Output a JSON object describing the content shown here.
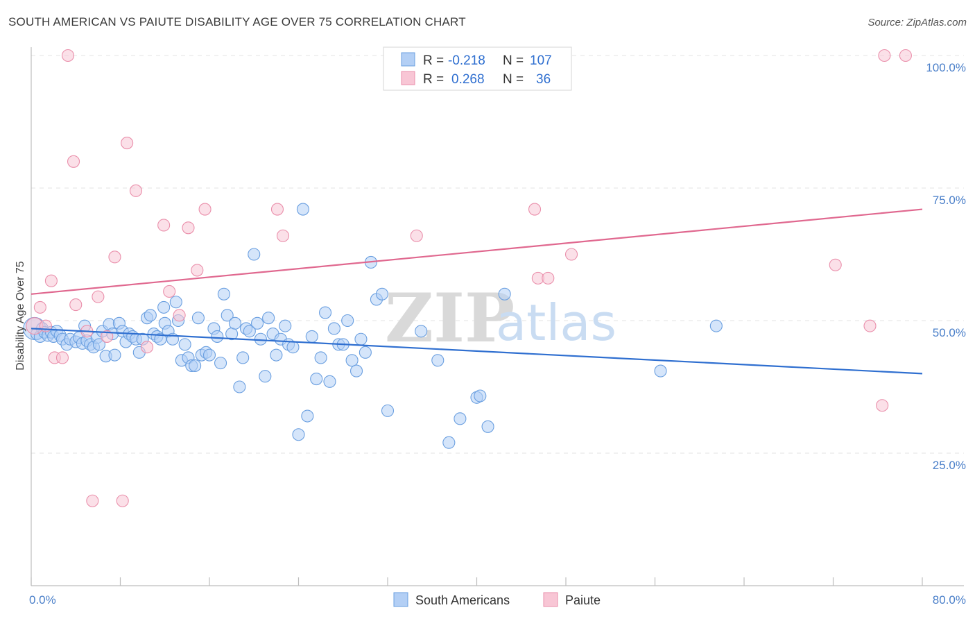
{
  "title": "SOUTH AMERICAN VS PAIUTE DISABILITY AGE OVER 75 CORRELATION CHART",
  "source": "Source: ZipAtlas.com",
  "watermark": {
    "zip": "ZIP",
    "atlas": "atlas"
  },
  "colors": {
    "blue": "#6a9fe0",
    "blue_fill": "#b3cff5",
    "blue_line": "#2f6fd0",
    "pink": "#ea8fab",
    "pink_fill": "#f8c6d5",
    "pink_line": "#e0688f",
    "grid": "#e3e3e3",
    "axis": "#bdbdbd"
  },
  "legend": {
    "rows": [
      {
        "r_label": "R =",
        "r_value": "-0.218",
        "n_label": "N =",
        "n_value": "107"
      },
      {
        "r_label": "R =",
        "r_value": "0.268",
        "n_label": "N =",
        "n_value": "36"
      }
    ]
  },
  "chart_data": {
    "type": "scatter",
    "title": "SOUTH AMERICAN VS PAIUTE DISABILITY AGE OVER 75 CORRELATION CHART",
    "xlabel": "",
    "ylabel": "Disability Age Over 75",
    "xlim": [
      0,
      80
    ],
    "ylim": [
      0,
      100
    ],
    "x_tick_labels": [
      "0.0%",
      "80.0%"
    ],
    "y_ticks": [
      25,
      50,
      75,
      100
    ],
    "y_tick_labels": [
      "25.0%",
      "50.0%",
      "75.0%",
      "100.0%"
    ],
    "grid": true,
    "legend_position": "top-center",
    "series": [
      {
        "name": "South Americans",
        "color": "#6a9fe0",
        "r": -0.218,
        "n": 107,
        "trend": {
          "x": [
            0,
            80
          ],
          "y": [
            48.5,
            40.0
          ]
        },
        "points": [
          [
            0.3,
            48.5
          ],
          [
            0.5,
            47.5
          ],
          [
            0.8,
            47.0
          ],
          [
            1.0,
            48.5
          ],
          [
            1.2,
            47.8
          ],
          [
            1.5,
            47.2
          ],
          [
            1.8,
            47.8
          ],
          [
            2.0,
            47.0
          ],
          [
            2.3,
            48.0
          ],
          [
            2.6,
            47.2
          ],
          [
            2.8,
            46.5
          ],
          [
            3.2,
            45.5
          ],
          [
            3.5,
            46.5
          ],
          [
            4.0,
            46.0
          ],
          [
            4.3,
            46.8
          ],
          [
            4.6,
            45.7
          ],
          [
            4.8,
            49.0
          ],
          [
            5.0,
            46.2
          ],
          [
            5.3,
            45.5
          ],
          [
            5.6,
            45.0
          ],
          [
            5.9,
            46.8
          ],
          [
            6.1,
            45.5
          ],
          [
            6.4,
            48.0
          ],
          [
            6.7,
            43.3
          ],
          [
            7.0,
            49.3
          ],
          [
            7.3,
            47.5
          ],
          [
            7.5,
            43.5
          ],
          [
            7.9,
            49.5
          ],
          [
            8.2,
            48.0
          ],
          [
            8.5,
            46.0
          ],
          [
            8.8,
            47.5
          ],
          [
            9.1,
            47.0
          ],
          [
            9.4,
            46.5
          ],
          [
            9.7,
            44.0
          ],
          [
            10.0,
            46.5
          ],
          [
            10.4,
            50.5
          ],
          [
            10.7,
            51.0
          ],
          [
            11.0,
            47.5
          ],
          [
            11.3,
            47.0
          ],
          [
            11.6,
            46.5
          ],
          [
            11.9,
            52.5
          ],
          [
            12.0,
            49.5
          ],
          [
            12.3,
            48.0
          ],
          [
            12.7,
            46.5
          ],
          [
            13.0,
            53.5
          ],
          [
            13.2,
            50.0
          ],
          [
            13.5,
            42.5
          ],
          [
            13.8,
            45.5
          ],
          [
            14.1,
            43.0
          ],
          [
            14.4,
            41.5
          ],
          [
            14.7,
            41.5
          ],
          [
            15.0,
            50.5
          ],
          [
            15.3,
            43.5
          ],
          [
            15.7,
            44.0
          ],
          [
            16.0,
            43.5
          ],
          [
            16.4,
            48.5
          ],
          [
            16.7,
            47.0
          ],
          [
            17.0,
            42.0
          ],
          [
            17.3,
            55.0
          ],
          [
            17.6,
            51.0
          ],
          [
            18.0,
            47.5
          ],
          [
            18.3,
            49.5
          ],
          [
            18.7,
            37.5
          ],
          [
            19.0,
            43.0
          ],
          [
            19.3,
            48.5
          ],
          [
            19.6,
            48.0
          ],
          [
            20.0,
            62.5
          ],
          [
            20.3,
            49.5
          ],
          [
            20.6,
            46.5
          ],
          [
            21.0,
            39.5
          ],
          [
            21.3,
            50.5
          ],
          [
            21.7,
            47.5
          ],
          [
            22.0,
            43.5
          ],
          [
            22.4,
            46.5
          ],
          [
            22.8,
            49.0
          ],
          [
            23.1,
            45.5
          ],
          [
            23.5,
            45.0
          ],
          [
            24.0,
            28.5
          ],
          [
            24.4,
            71.0
          ],
          [
            24.8,
            32.0
          ],
          [
            25.2,
            47.0
          ],
          [
            25.6,
            39.0
          ],
          [
            26.0,
            43.0
          ],
          [
            26.4,
            51.5
          ],
          [
            26.8,
            38.5
          ],
          [
            27.2,
            48.5
          ],
          [
            27.6,
            45.5
          ],
          [
            28.0,
            45.5
          ],
          [
            28.4,
            50.0
          ],
          [
            28.8,
            42.5
          ],
          [
            29.2,
            40.5
          ],
          [
            29.6,
            46.5
          ],
          [
            30.0,
            44.0
          ],
          [
            30.5,
            61.0
          ],
          [
            31.0,
            54.0
          ],
          [
            31.5,
            55.0
          ],
          [
            32.0,
            33.0
          ],
          [
            35.0,
            48.0
          ],
          [
            36.5,
            42.5
          ],
          [
            37.5,
            27.0
          ],
          [
            38.5,
            31.5
          ],
          [
            40.0,
            35.5
          ],
          [
            40.3,
            35.8
          ],
          [
            41.0,
            30.0
          ],
          [
            42.5,
            55.0
          ],
          [
            61.5,
            49.0
          ],
          [
            56.5,
            40.5
          ]
        ]
      },
      {
        "name": "Paiute",
        "color": "#ea8fab",
        "r": 0.268,
        "n": 36,
        "trend": {
          "x": [
            0,
            80
          ],
          "y": [
            55.0,
            71.0
          ]
        },
        "points": [
          [
            0.3,
            49.0
          ],
          [
            0.8,
            52.5
          ],
          [
            1.3,
            49.0
          ],
          [
            1.8,
            57.5
          ],
          [
            2.1,
            43.0
          ],
          [
            2.8,
            43.0
          ],
          [
            3.3,
            100.0
          ],
          [
            3.8,
            80.0
          ],
          [
            4.0,
            53.0
          ],
          [
            5.0,
            48.0
          ],
          [
            5.5,
            16.0
          ],
          [
            6.0,
            54.5
          ],
          [
            6.8,
            47.0
          ],
          [
            7.5,
            62.0
          ],
          [
            8.2,
            16.0
          ],
          [
            8.6,
            83.5
          ],
          [
            9.4,
            74.5
          ],
          [
            10.4,
            45.0
          ],
          [
            11.9,
            68.0
          ],
          [
            12.4,
            55.5
          ],
          [
            13.3,
            51.0
          ],
          [
            14.1,
            67.5
          ],
          [
            14.9,
            59.5
          ],
          [
            15.6,
            71.0
          ],
          [
            22.1,
            71.0
          ],
          [
            22.6,
            66.0
          ],
          [
            34.6,
            66.0
          ],
          [
            45.2,
            71.0
          ],
          [
            45.5,
            58.0
          ],
          [
            46.4,
            58.0
          ],
          [
            48.5,
            62.5
          ],
          [
            72.2,
            60.5
          ],
          [
            75.3,
            49.0
          ],
          [
            76.4,
            34.0
          ],
          [
            76.6,
            100.0
          ],
          [
            78.5,
            100.0
          ]
        ]
      }
    ]
  },
  "bottom_legend": [
    {
      "label": "South Americans"
    },
    {
      "label": "Paiute"
    }
  ]
}
